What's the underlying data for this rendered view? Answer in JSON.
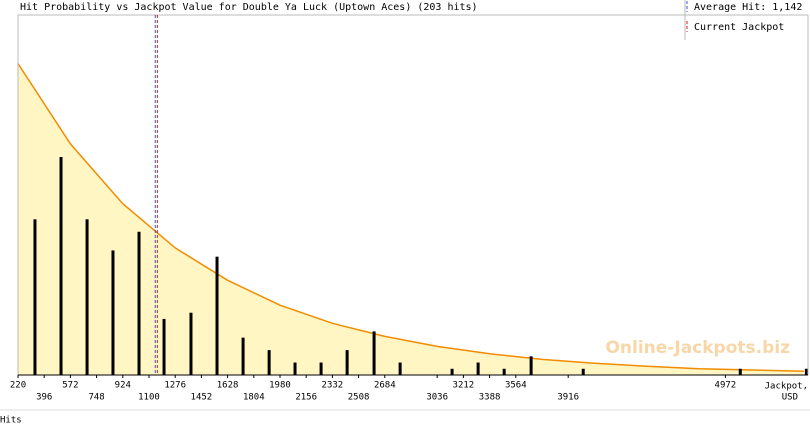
{
  "chart_data": {
    "type": "bar",
    "title": "Hit Probability vs Jackpot Value for Double Ya Luck (Uptown Aces) (203 hits)",
    "x": [
      334,
      509,
      684,
      858,
      1033,
      1201,
      1382,
      1557,
      1732,
      1907,
      2081,
      2256,
      2431,
      2612,
      2787,
      3136,
      3311,
      3486,
      3667,
      4017,
      5072,
      5516
    ],
    "values": [
      25,
      35,
      25,
      20,
      23,
      9,
      10,
      19,
      6,
      4,
      2,
      2,
      4,
      7,
      2,
      1,
      2,
      1,
      3,
      1,
      1,
      1
    ],
    "color": "#000000",
    "curve": {
      "x": [
        220,
        572,
        924,
        1276,
        1628,
        1980,
        2332,
        2684,
        3036,
        3388,
        3740,
        4092,
        4444,
        4796,
        5148,
        5500
      ],
      "values": [
        50,
        37.1,
        27.5,
        20.4,
        15.2,
        11.2,
        8.3,
        6.2,
        4.6,
        3.4,
        2.5,
        1.9,
        1.4,
        1.0,
        0.8,
        0.6
      ],
      "color": "#f08c00",
      "fill": "#fff6c4"
    },
    "average": {
      "value": 1142,
      "label": "Average Hit: 1,142",
      "color": "#3355cc"
    },
    "current_jackpot": {
      "value": 1156,
      "label": "Current Jackpot",
      "color": "#cc2222"
    },
    "xlim": [
      220,
      5527
    ],
    "ylim": [
      0,
      57
    ],
    "xticks": [
      220,
      396,
      572,
      748,
      924,
      1100,
      1276,
      1452,
      1628,
      1804,
      1980,
      2156,
      2332,
      2508,
      2684,
      3036,
      3212,
      3388,
      3564,
      3916,
      4972
    ],
    "xlabel_lines": [
      "Jackpot,",
      "USD"
    ],
    "hits_label": "Hits",
    "watermark": "Online-Jackpots.biz"
  }
}
